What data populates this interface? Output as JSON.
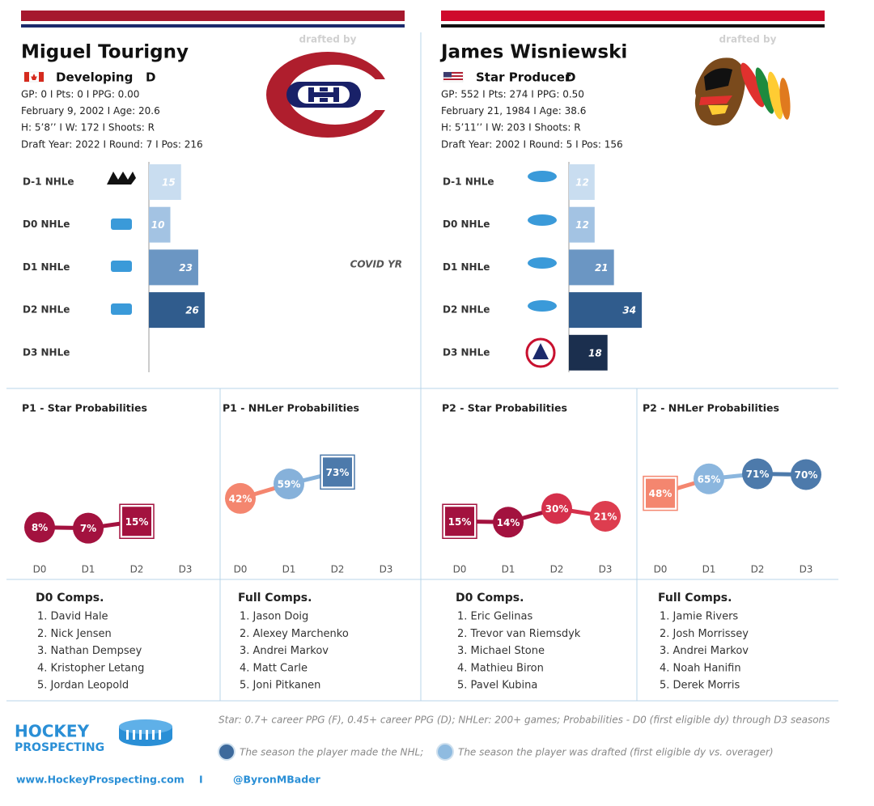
{
  "players": [
    {
      "name": "Miguel Tourigny",
      "role": "Developing",
      "position": "D",
      "stats": [
        "GP: 0 I Pts: 0 I PPG: 0.00",
        "February 9, 2002 I Age: 20.6",
        "H: 5’8’’ I W: 172 I Shoots: R",
        "Draft Year: 2022 I Round: 7 I Pos: 216"
      ],
      "drafted_by": "drafted by",
      "team_colors": [
        "#a6192e",
        "#1b2a6b"
      ],
      "nhle": {
        "type": "bar",
        "categories": [
          "D-1 NHLe",
          "D0 NHLe",
          "D1 NHLe",
          "D2 NHLe",
          "D3 NHLe"
        ],
        "values": [
          15,
          10,
          23,
          26,
          null
        ],
        "colors": [
          "#c9ddf0",
          "#a3c3e3",
          "#6b96c3",
          "#305c8d",
          "#1b2f4e"
        ],
        "xlim": [
          0,
          40
        ],
        "annotation": "COVID YR"
      },
      "star": {
        "type": "line",
        "title": "P1 - Star Probabilities",
        "categories": [
          "D0",
          "D1",
          "D2",
          "D3"
        ],
        "values": [
          8,
          7,
          15,
          null
        ],
        "value_labels": [
          "8%",
          "7%",
          "15%",
          null
        ],
        "colors": [
          "#a3123f",
          "#a3123f",
          "#a3123f",
          "#a3123f"
        ],
        "drafted_index": 2,
        "ylim": [
          0,
          100
        ]
      },
      "nhler": {
        "type": "line",
        "title": "P1 - NHLer Probabilities",
        "categories": [
          "D0",
          "D1",
          "D2",
          "D3"
        ],
        "values": [
          42,
          59,
          73,
          null
        ],
        "value_labels": [
          "42%",
          "59%",
          "73%",
          null
        ],
        "colors": [
          "#f4866f",
          "#86b1da",
          "#4d7aab",
          "#4d7aab"
        ],
        "drafted_index": 2,
        "ylim": [
          0,
          100
        ]
      },
      "d0_comps": {
        "title": "D0 Comps.",
        "items": [
          "1. David Hale",
          "2. Nick Jensen",
          "3. Nathan Dempsey",
          "4. Kristopher Letang",
          "5. Jordan Leopold"
        ]
      },
      "full_comps": {
        "title": "Full Comps.",
        "items": [
          "1. Jason Doig",
          "2. Alexey Marchenko",
          "3. Andrei Markov",
          "4. Matt Carle",
          "5. Joni Pitkanen"
        ]
      }
    },
    {
      "name": "James Wisniewski",
      "role": "Star Producer",
      "position": "D",
      "stats": [
        "GP: 552 I Pts: 274 I PPG: 0.50",
        "February 21, 1984 I Age: 38.6",
        "H: 5’11’’ I W: 203 I Shoots: R",
        "Draft Year: 2002 I Round: 5 I Pos: 156"
      ],
      "drafted_by": "drafted by",
      "team_colors": [
        "#cf0a2c",
        "#111111"
      ],
      "nhle": {
        "type": "bar",
        "categories": [
          "D-1 NHLe",
          "D0 NHLe",
          "D1 NHLe",
          "D2 NHLe",
          "D3 NHLe"
        ],
        "values": [
          12,
          12,
          21,
          34,
          18
        ],
        "colors": [
          "#c9ddf0",
          "#a3c3e3",
          "#6b96c3",
          "#305c8d",
          "#1b2f4e"
        ],
        "xlim": [
          0,
          40
        ]
      },
      "star": {
        "type": "line",
        "title": "P2 - Star Probabilities",
        "categories": [
          "D0",
          "D1",
          "D2",
          "D3"
        ],
        "values": [
          15,
          14,
          30,
          21
        ],
        "value_labels": [
          "15%",
          "14%",
          "30%",
          "21%"
        ],
        "colors": [
          "#a3123f",
          "#a3123f",
          "#d5304b",
          "#dd3d4f"
        ],
        "drafted_index": 0,
        "ylim": [
          0,
          100
        ]
      },
      "nhler": {
        "type": "line",
        "title": "P2 - NHLer Probabilities",
        "categories": [
          "D0",
          "D1",
          "D2",
          "D3"
        ],
        "values": [
          48,
          65,
          71,
          70
        ],
        "value_labels": [
          "48%",
          "65%",
          "71%",
          "70%"
        ],
        "colors": [
          "#f4866f",
          "#8bb6de",
          "#4d7aab",
          "#4d7aab"
        ],
        "drafted_index": 0,
        "ylim": [
          0,
          100
        ]
      },
      "d0_comps": {
        "title": "D0 Comps.",
        "items": [
          "1. Eric Gelinas",
          "2. Trevor van Riemsdyk",
          "3. Michael Stone",
          "4. Mathieu Biron",
          "5. Pavel Kubina"
        ]
      },
      "full_comps": {
        "title": "Full Comps.",
        "items": [
          "1. Jamie Rivers",
          "2. Josh Morrissey",
          "3. Andrei Markov",
          "4. Noah Hanifin",
          "5. Derek Morris"
        ]
      }
    }
  ],
  "footer": {
    "brand": [
      "HOCKEY",
      "PROSPECTING"
    ],
    "definition": "Star: 0.7+ career PPG (F), 0.45+ career PPG (D); NHLer: 200+ games; Probabilities - D0 (first eligible dy) through D3 seasons",
    "legend": [
      {
        "label": "The season the player made the NHL;",
        "color": "#3d6a9c"
      },
      {
        "label": "The season the player was drafted (first eligible dy vs. overager)",
        "color": "#8fbbe0"
      }
    ],
    "website": "www.HockeyProspecting.com",
    "separator": "I",
    "handle": "@ByronMBader"
  }
}
